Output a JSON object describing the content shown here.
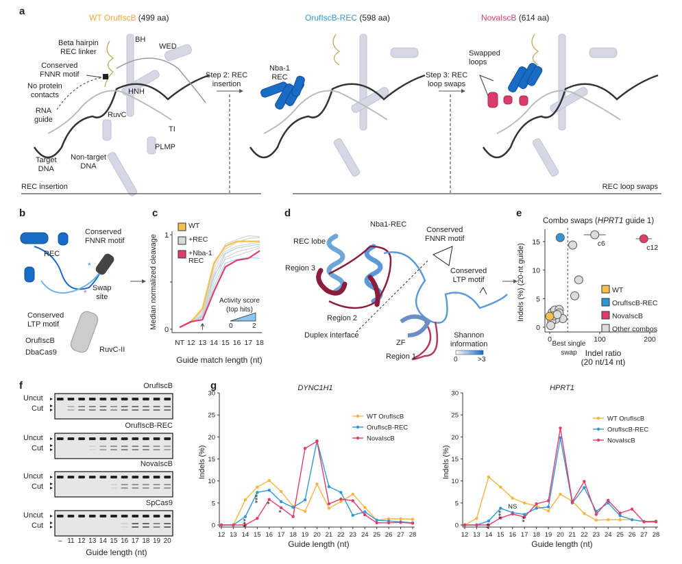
{
  "panel_a": {
    "label": "a",
    "titles": [
      {
        "name": "WT OrufIscB",
        "size": "(499 aa)",
        "color": "#f2a73b"
      },
      {
        "name": "OrufIscB-REC",
        "size": "(598 aa)",
        "color": "#2f97d8"
      },
      {
        "name": "NovaIscB",
        "size": "(614 aa)",
        "color": "#e23c6a"
      }
    ],
    "wt_labels": {
      "bh": "BH",
      "wed": "WED",
      "hairpin": "Beta hairpin\nREC linker",
      "fnnr": "Conserved\nFNNR motif",
      "no_contacts": "No protein\ncontacts",
      "rna": "RNA\nguide",
      "hnh": "HNH",
      "ruvc": "RuvC",
      "ti": "TI",
      "plmp": "PLMP",
      "target": "Target\nDNA",
      "nontarget": "Non-target\nDNA"
    },
    "rec_label": "Nba-1\nREC",
    "swapped_label": "Swapped\nloops",
    "step2": "Step 2: REC\ninsertion",
    "step3": "Step 3: REC\nloop swaps",
    "section_left": "REC insertion",
    "section_right": "REC loop swaps"
  },
  "panel_b": {
    "label": "b",
    "rec": "REC",
    "fnnr": "Conserved\nFNNR motif",
    "swap": "Swap\nsite",
    "ltp": "Conserved\nLTP motif",
    "oruf": "OrufIscB",
    "dba": "DbaCas9",
    "ruvc": "RuvC-II"
  },
  "panel_c": {
    "label": "c",
    "legend": [
      {
        "name": "WT",
        "color": "#f6c04a"
      },
      {
        "name": "+REC",
        "color": "#d9d9d9"
      },
      {
        "name": "+Nba-1\nREC",
        "color": "#e23c6a"
      }
    ],
    "activity_title": "Activity score\n(top hits)",
    "activity_min": "0",
    "activity_max": "2"
  },
  "panel_d": {
    "label": "d",
    "title": "Nba1-REC",
    "rec_lobe": "REC lobe",
    "region3": "Region 3",
    "region2": "Region 2",
    "region1": "Region 1",
    "duplex": "Duplex interface",
    "zf": "ZF",
    "fnnr": "Conserved\nFNNR motif",
    "ltp": "Conserved\nLTP motif",
    "shannon": "Shannon\ninformation",
    "scale_min": "0",
    "scale_max": ">3"
  },
  "panel_e": {
    "label": "e"
  },
  "panel_f": {
    "label": "f",
    "uncut": "Uncut",
    "cut": "Cut",
    "xlabel": "Guide length (nt)",
    "lanes": [
      "–",
      "11",
      "12",
      "13",
      "14",
      "15",
      "16",
      "17",
      "18",
      "19",
      "20"
    ],
    "gels": [
      {
        "name": "OrufIscB",
        "cut_strength": [
          0,
          0.3,
          0.6,
          0.6,
          0.7,
          0.5,
          0.7,
          0.7,
          0.7,
          0.7,
          0.7
        ]
      },
      {
        "name": "OrufIscB-REC",
        "cut_strength": [
          0,
          0,
          0,
          0.1,
          0.4,
          0.5,
          0.6,
          0.6,
          0.6,
          0.5,
          0.4
        ]
      },
      {
        "name": "NovaIscB",
        "cut_strength": [
          0,
          0,
          0,
          0,
          0,
          0.1,
          0.5,
          0.5,
          0.5,
          0.5,
          0.5
        ]
      },
      {
        "name": "SpCas9",
        "cut_strength": [
          0,
          0,
          0,
          0,
          0,
          0,
          0.1,
          0.8,
          0.8,
          0.6,
          0.8
        ]
      }
    ]
  },
  "panel_g": {
    "label": "g"
  },
  "chart_data": [
    {
      "id": "c",
      "type": "line",
      "xlabel": "Guide match length (nt)",
      "ylabel": "Median normalized cleavage",
      "categories": [
        "NT",
        "12",
        "13",
        "14",
        "15",
        "16",
        "17",
        "18"
      ],
      "yticks": [
        "0",
        "1"
      ],
      "ylim": [
        0,
        1
      ],
      "arrow_at": "13",
      "series": [
        {
          "name": "WT",
          "color": "#f6c04a",
          "values": [
            0.02,
            0.08,
            0.22,
            0.7,
            0.88,
            0.93,
            0.93,
            0.93
          ]
        },
        {
          "name": "+Nba-1 REC",
          "color": "#e23c6a",
          "values": [
            0.02,
            0.08,
            0.1,
            0.4,
            0.66,
            0.73,
            0.75,
            0.83
          ]
        }
      ],
      "background_series": [
        [
          0.02,
          0.09,
          0.18,
          0.65,
          0.85,
          0.92,
          0.96,
          0.97
        ],
        [
          0.02,
          0.08,
          0.16,
          0.6,
          0.82,
          0.88,
          0.9,
          0.92
        ],
        [
          0.02,
          0.08,
          0.14,
          0.55,
          0.8,
          0.86,
          0.88,
          0.9
        ],
        [
          0.02,
          0.07,
          0.12,
          0.5,
          0.76,
          0.82,
          0.85,
          0.88
        ],
        [
          0.02,
          0.08,
          0.15,
          0.58,
          0.74,
          0.78,
          0.82,
          0.86
        ],
        [
          0.02,
          0.08,
          0.13,
          0.45,
          0.7,
          0.74,
          0.76,
          0.75
        ],
        [
          0.02,
          0.09,
          0.2,
          0.68,
          0.9,
          0.95,
          0.99,
          0.98
        ]
      ]
    },
    {
      "id": "e",
      "type": "scatter",
      "title": "Combo swaps (HPRT1 guide 1)",
      "xlabel": "Indel ratio\n(20 nt/14 nt)",
      "ylabel": "Indels (%) (20-nt guide)",
      "xlim": [
        -10,
        215
      ],
      "ylim": [
        -0.5,
        17
      ],
      "xticks": [
        "0",
        "100",
        "200"
      ],
      "yticks": [
        "0",
        "5",
        "10",
        "15"
      ],
      "threshold": {
        "x": 36,
        "label": "Best single\nswap"
      },
      "legend": [
        {
          "name": "WT",
          "color": "#f6c04a"
        },
        {
          "name": "OrufIscB-REC",
          "color": "#2f97d8"
        },
        {
          "name": "NovaIscB",
          "color": "#e23c6a"
        },
        {
          "name": "Other combos",
          "color": "#dcdcdc"
        }
      ],
      "points": [
        {
          "group": "WT",
          "x": 0,
          "y": 1.9
        },
        {
          "group": "OrufIscB-REC",
          "x": 21,
          "y": 15.7
        },
        {
          "group": "NovaIscB",
          "x": 188,
          "y": 15.5,
          "label": "c12",
          "xerr": 16
        },
        {
          "group": "Other combos",
          "x": 90,
          "y": 16.2,
          "label": "c6",
          "xerr": 22,
          "yerr": 0.7
        },
        {
          "group": "Other combos",
          "x": 46,
          "y": 14.4
        },
        {
          "group": "Other combos",
          "x": 58,
          "y": 8.3,
          "xerr": 8
        },
        {
          "group": "Other combos",
          "x": 50,
          "y": 5.5
        },
        {
          "group": "Other combos",
          "x": 5,
          "y": 2.6
        },
        {
          "group": "Other combos",
          "x": 10,
          "y": 3.0
        },
        {
          "group": "Other combos",
          "x": 19,
          "y": 3.1
        },
        {
          "group": "Other combos",
          "x": 19,
          "y": 2.5
        },
        {
          "group": "Other combos",
          "x": 26,
          "y": 1.5
        },
        {
          "group": "Other combos",
          "x": 12,
          "y": 1.4
        },
        {
          "group": "Other combos",
          "x": 4,
          "y": 1.0
        },
        {
          "group": "Other combos",
          "x": 2,
          "y": 0.3
        },
        {
          "group": "Other combos",
          "x": 8,
          "y": 2.0
        },
        {
          "group": "Other combos",
          "x": 15,
          "y": 2.2
        }
      ]
    },
    {
      "id": "g1",
      "type": "line",
      "title": "DYNC1H1",
      "xlabel": "Guide length (nt)",
      "ylabel": "Indels (%)",
      "x": [
        12,
        13,
        14,
        15,
        16,
        17,
        18,
        19,
        20,
        21,
        22,
        23,
        24,
        25,
        26,
        27,
        28
      ],
      "ylim": [
        0,
        30
      ],
      "yticks": [
        0,
        5,
        10,
        15,
        20,
        25,
        30
      ],
      "legend_position": "top-right",
      "series": [
        {
          "name": "WT OrufIscB",
          "color": "#f6b443",
          "values": [
            0,
            0,
            5.7,
            8.6,
            10.1,
            7.6,
            4.2,
            3.1,
            9.3,
            3.8,
            5.3,
            7.0,
            4.0,
            1.1,
            1.4,
            1.4,
            1.3
          ]
        },
        {
          "name": "OrufIscB-REC",
          "color": "#2f97d8",
          "values": [
            0,
            0,
            1.9,
            7.4,
            7.9,
            5.3,
            4.0,
            5.7,
            19.1,
            8.7,
            7.4,
            2.2,
            3.0,
            1.1,
            0.9,
            0.7,
            0.5
          ]
        },
        {
          "name": "NovaIscB",
          "color": "#e23c6a",
          "values": [
            0,
            0,
            0,
            1.5,
            5.8,
            3.9,
            1.9,
            17.4,
            19.0,
            4.8,
            5.9,
            5.5,
            2.3,
            0.5,
            0.5,
            0.6,
            0.4
          ]
        }
      ],
      "annotations": [
        {
          "x": 14,
          "text": "***"
        },
        {
          "x": 15,
          "text": "***"
        },
        {
          "x": 16,
          "text": "*"
        },
        {
          "x": 17,
          "text": "*"
        }
      ]
    },
    {
      "id": "g2",
      "type": "line",
      "title": "HPRT1",
      "xlabel": "Guide length (nt)",
      "ylabel": "Indels (%)",
      "x": [
        12,
        13,
        14,
        15,
        16,
        17,
        18,
        19,
        20,
        21,
        22,
        23,
        24,
        25,
        26,
        27,
        28
      ],
      "ylim": [
        0,
        30
      ],
      "yticks": [
        0,
        5,
        10,
        15,
        20,
        25,
        30
      ],
      "legend_position": "top-right",
      "series": [
        {
          "name": "WT OrufIscB",
          "color": "#f6b443",
          "values": [
            0,
            1.5,
            10.9,
            8.6,
            6.1,
            5.0,
            4.3,
            3.2,
            7.0,
            5.4,
            2.6,
            1.1,
            1.2,
            1.2,
            1.2,
            0.8,
            0.9
          ]
        },
        {
          "name": "OrufIscB-REC",
          "color": "#2f97d8",
          "values": [
            0,
            0,
            0.9,
            3.8,
            2.8,
            2.4,
            3.8,
            4.1,
            19.8,
            5.0,
            8.5,
            3.1,
            5.0,
            2.1,
            1.2,
            0.8,
            0.8
          ]
        },
        {
          "name": "NovaIscB",
          "color": "#e23c6a",
          "values": [
            0,
            0,
            0,
            1.6,
            2.5,
            1.8,
            4.8,
            5.5,
            22.0,
            5.3,
            9.9,
            2.4,
            5.6,
            2.7,
            3.6,
            0.7,
            0.7
          ]
        }
      ],
      "annotations": [
        {
          "x": 14,
          "text": "**"
        },
        {
          "x": 15,
          "text": "***"
        },
        {
          "x": 16,
          "text": "NS"
        },
        {
          "x": 17,
          "text": "**"
        }
      ]
    }
  ]
}
